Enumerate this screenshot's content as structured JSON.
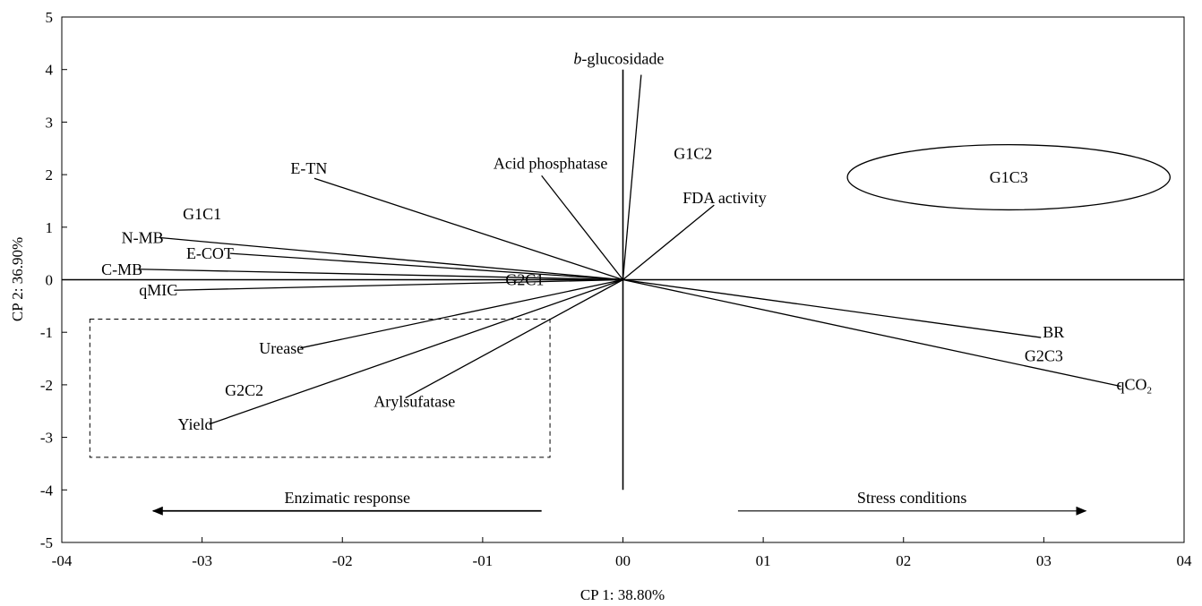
{
  "chart_data": {
    "type": "scatter",
    "subtype": "pca-biplot",
    "title": "",
    "xlabel": "CP 1: 38.80%",
    "ylabel": "CP 2: 36.90%",
    "xlim": [
      -4,
      4
    ],
    "ylim": [
      -5,
      5
    ],
    "x_ticks": [
      {
        "value": -4,
        "label": "-04"
      },
      {
        "value": -3,
        "label": "-03"
      },
      {
        "value": -2,
        "label": "-02"
      },
      {
        "value": -1,
        "label": "-01"
      },
      {
        "value": 0,
        "label": "00"
      },
      {
        "value": 1,
        "label": "01"
      },
      {
        "value": 2,
        "label": "02"
      },
      {
        "value": 3,
        "label": "03"
      },
      {
        "value": 4,
        "label": "04"
      }
    ],
    "y_ticks": [
      {
        "value": 5,
        "label": "5"
      },
      {
        "value": 4,
        "label": "4"
      },
      {
        "value": 3,
        "label": "3"
      },
      {
        "value": 2,
        "label": "2"
      },
      {
        "value": 1,
        "label": "1"
      },
      {
        "value": 0,
        "label": "0"
      },
      {
        "value": -1,
        "label": "-1"
      },
      {
        "value": -2,
        "label": "-2"
      },
      {
        "value": -3,
        "label": "-3"
      },
      {
        "value": -4,
        "label": "-4"
      },
      {
        "value": -5,
        "label": "-5"
      }
    ],
    "reference_lines": {
      "horizontal": {
        "y": 0,
        "x_from": -4,
        "x_to": 4
      },
      "vertical": {
        "x": 0,
        "y_from": -4,
        "y_to": 4
      }
    },
    "vectors": [
      {
        "name": "b-glucosidade",
        "prefix": "b",
        "suffix": "-glucosidade",
        "x": 0.13,
        "y": 3.9
      },
      {
        "name": "E-TN",
        "x": -2.2,
        "y": 1.93
      },
      {
        "name": "Acid phosphatase",
        "x": -0.58,
        "y": 1.98
      },
      {
        "name": "FDA activity",
        "x": 0.65,
        "y": 1.42
      },
      {
        "name": "N-MB",
        "x": -3.3,
        "y": 0.8
      },
      {
        "name": "E-COT",
        "x": -2.8,
        "y": 0.5
      },
      {
        "name": "C-MB",
        "x": -3.45,
        "y": 0.2
      },
      {
        "name": "qMIC",
        "x": -3.2,
        "y": -0.2
      },
      {
        "name": "Urease",
        "x": -2.3,
        "y": -1.3
      },
      {
        "name": "Yield",
        "x": -2.95,
        "y": -2.75
      },
      {
        "name": "Arylsufatase",
        "x": -1.55,
        "y": -2.25
      },
      {
        "name": "BR",
        "x": 2.98,
        "y": -1.1
      },
      {
        "name": "qCO2",
        "prefix": "qCO",
        "suffix": "2",
        "x": 3.55,
        "y": -2.03
      }
    ],
    "group_labels": [
      {
        "label": "G1C1",
        "x": -3.0,
        "y": 1.25
      },
      {
        "label": "G1C2",
        "x": 0.5,
        "y": 2.4
      },
      {
        "label": "G1C3",
        "x": 2.75,
        "y": 1.95
      },
      {
        "label": "G2C1",
        "x": -0.7,
        "y": 0.0
      },
      {
        "label": "G2C2",
        "x": -2.7,
        "y": -2.1
      },
      {
        "label": "G2C3",
        "x": 3.0,
        "y": -1.45
      }
    ],
    "highlights": [
      {
        "shape": "ellipse",
        "target": "G1C3",
        "cx": 2.75,
        "cy": 1.95,
        "rx": 1.15,
        "ry": 0.62,
        "style": "solid"
      },
      {
        "shape": "rect",
        "x0": -3.8,
        "x1": -0.52,
        "y0": -3.38,
        "y1": -0.75,
        "style": "dashed"
      }
    ],
    "annotations": [
      {
        "text": "Enzimatic response",
        "direction": "left",
        "x_from": -0.58,
        "x_to": -3.35,
        "y": -4.4
      },
      {
        "text": "Stress conditions",
        "direction": "right",
        "x_from": 0.82,
        "x_to": 3.3,
        "y": -4.4
      }
    ]
  }
}
